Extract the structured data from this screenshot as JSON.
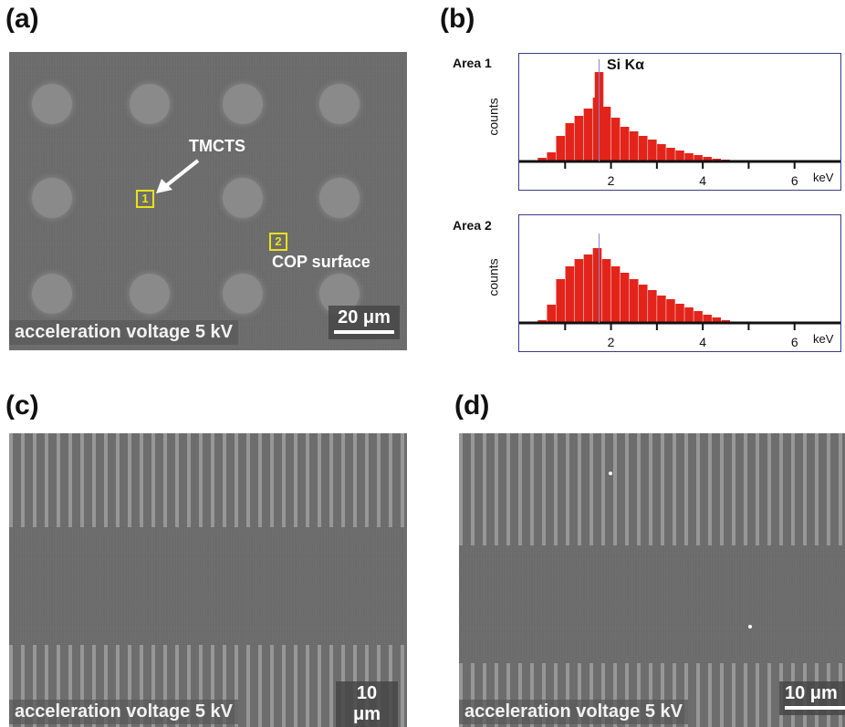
{
  "panels": {
    "a": {
      "label": "(a)",
      "annotation_tmcts": "TMCTS",
      "annotation_cop": "COP surface",
      "box1": "1",
      "box2": "2",
      "caption": "acceleration voltage 5 kV",
      "scalebar": "20 μm"
    },
    "b": {
      "label": "(b)",
      "area1_label": "Area 1",
      "area2_label": "Area 2",
      "peak_label": "Si Kα",
      "ylabel": "counts",
      "unit": "keV"
    },
    "c": {
      "label": "(c)",
      "caption": "acceleration voltage 5 kV",
      "scalebar": "10 μm"
    },
    "d": {
      "label": "(d)",
      "caption": "acceleration voltage 5 kV",
      "scalebar": "10 μm"
    }
  },
  "chart_data": [
    {
      "type": "bar",
      "title": "Area 1",
      "annotation": "Si Kα",
      "xlabel": "keV",
      "ylabel": "counts",
      "x_ticks": [
        "2",
        "4",
        "6"
      ],
      "xlim": [
        0,
        7
      ],
      "x": [
        0.5,
        0.7,
        0.9,
        1.1,
        1.3,
        1.5,
        1.7,
        1.74,
        1.9,
        2.1,
        2.3,
        2.5,
        2.7,
        2.9,
        3.1,
        3.3,
        3.5,
        3.7,
        3.9,
        4.1,
        4.3,
        4.5,
        4.7
      ],
      "values": [
        4,
        10,
        28,
        42,
        50,
        58,
        70,
        98,
        60,
        48,
        38,
        33,
        28,
        24,
        19,
        15,
        12,
        9,
        7,
        5,
        3,
        2,
        1
      ],
      "colors": {
        "bars": "#e3241b",
        "frame": "#3a3a8a"
      }
    },
    {
      "type": "bar",
      "title": "Area 2",
      "xlabel": "keV",
      "ylabel": "counts",
      "x_ticks": [
        "2",
        "4",
        "6"
      ],
      "xlim": [
        0,
        7
      ],
      "x": [
        0.5,
        0.7,
        0.9,
        1.1,
        1.3,
        1.5,
        1.7,
        1.9,
        2.1,
        2.3,
        2.5,
        2.7,
        2.9,
        3.1,
        3.3,
        3.5,
        3.7,
        3.9,
        4.1,
        4.3,
        4.5,
        4.7
      ],
      "values": [
        3,
        20,
        48,
        62,
        70,
        75,
        82,
        70,
        62,
        55,
        48,
        42,
        36,
        30,
        26,
        21,
        17,
        13,
        9,
        6,
        3,
        1
      ],
      "colors": {
        "bars": "#e3241b",
        "frame": "#3a3a8a"
      }
    }
  ]
}
